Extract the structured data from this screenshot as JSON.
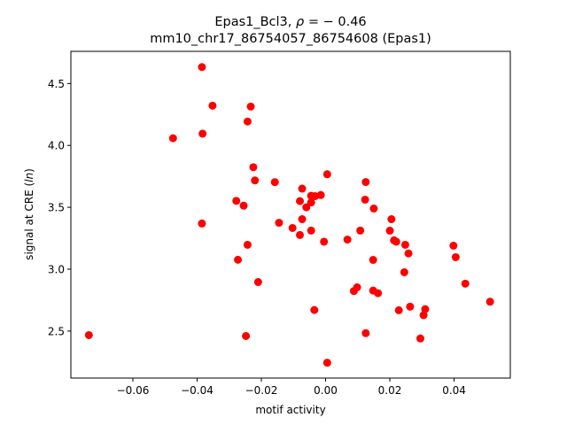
{
  "chart_data": {
    "type": "scatter",
    "title_line1_text": "Epas1_Bcl3, ",
    "title_line1_rho": "ρ",
    "title_line1_value": " = − 0.46",
    "title_line2": "mm10_chr17_86754057_86754608 (Epas1)",
    "xlabel": "motif activity",
    "ylabel_prefix": "signal at CRE (",
    "ylabel_italic": "ln",
    "ylabel_suffix": ")",
    "xlim": [
      -0.0793,
      0.0575
    ],
    "ylim": [
      2.12,
      4.76
    ],
    "x_ticks": [
      -0.06,
      -0.04,
      -0.02,
      0.0,
      0.02,
      0.04
    ],
    "x_tick_labels": [
      "−0.06",
      "−0.04",
      "−0.02",
      "0.00",
      "0.02",
      "0.04"
    ],
    "y_ticks": [
      2.5,
      3.0,
      3.5,
      4.0,
      4.5
    ],
    "y_tick_labels": [
      "2.5",
      "3.0",
      "3.5",
      "4.0",
      "4.5"
    ],
    "marker_color": "#ff0000",
    "grid": false,
    "points": [
      {
        "x": -0.0737,
        "y": 2.467
      },
      {
        "x": -0.0475,
        "y": 4.058
      },
      {
        "x": -0.0385,
        "y": 4.633
      },
      {
        "x": -0.0383,
        "y": 4.095
      },
      {
        "x": -0.0385,
        "y": 3.369
      },
      {
        "x": -0.0352,
        "y": 4.321
      },
      {
        "x": -0.0233,
        "y": 4.314
      },
      {
        "x": -0.0243,
        "y": 4.193
      },
      {
        "x": -0.0225,
        "y": 3.824
      },
      {
        "x": -0.022,
        "y": 3.717
      },
      {
        "x": -0.0278,
        "y": 3.552
      },
      {
        "x": -0.0255,
        "y": 3.513
      },
      {
        "x": -0.0243,
        "y": 3.197
      },
      {
        "x": -0.0273,
        "y": 3.076
      },
      {
        "x": -0.021,
        "y": 2.896
      },
      {
        "x": -0.0248,
        "y": 2.46
      },
      {
        "x": -0.0158,
        "y": 3.703
      },
      {
        "x": -0.0145,
        "y": 3.375
      },
      {
        "x": -0.0103,
        "y": 3.333
      },
      {
        "x": -0.008,
        "y": 3.55
      },
      {
        "x": -0.0073,
        "y": 3.651
      },
      {
        "x": -0.0073,
        "y": 3.404
      },
      {
        "x": -0.008,
        "y": 3.276
      },
      {
        "x": -0.006,
        "y": 3.5
      },
      {
        "x": -0.0045,
        "y": 3.539
      },
      {
        "x": -0.0045,
        "y": 3.593
      },
      {
        "x": -0.0033,
        "y": 3.59
      },
      {
        "x": -0.0015,
        "y": 3.599
      },
      {
        "x": -0.0045,
        "y": 3.312
      },
      {
        "x": -0.0035,
        "y": 2.67
      },
      {
        "x": -0.0005,
        "y": 3.222
      },
      {
        "x": 0.0005,
        "y": 3.767
      },
      {
        "x": 0.0005,
        "y": 2.244
      },
      {
        "x": 0.0068,
        "y": 3.239
      },
      {
        "x": 0.0108,
        "y": 3.312
      },
      {
        "x": 0.0125,
        "y": 3.704
      },
      {
        "x": 0.0123,
        "y": 3.562
      },
      {
        "x": 0.015,
        "y": 3.49
      },
      {
        "x": 0.0148,
        "y": 3.075
      },
      {
        "x": 0.0098,
        "y": 2.853
      },
      {
        "x": 0.0088,
        "y": 2.823
      },
      {
        "x": 0.0148,
        "y": 2.827
      },
      {
        "x": 0.0163,
        "y": 2.806
      },
      {
        "x": 0.0125,
        "y": 2.483
      },
      {
        "x": 0.0205,
        "y": 3.404
      },
      {
        "x": 0.02,
        "y": 3.311
      },
      {
        "x": 0.0213,
        "y": 3.233
      },
      {
        "x": 0.022,
        "y": 3.222
      },
      {
        "x": 0.0248,
        "y": 3.197
      },
      {
        "x": 0.0258,
        "y": 3.127
      },
      {
        "x": 0.0245,
        "y": 2.975
      },
      {
        "x": 0.0228,
        "y": 2.668
      },
      {
        "x": 0.0263,
        "y": 2.697
      },
      {
        "x": 0.0305,
        "y": 2.628
      },
      {
        "x": 0.031,
        "y": 2.677
      },
      {
        "x": 0.0295,
        "y": 2.44
      },
      {
        "x": 0.0398,
        "y": 3.19
      },
      {
        "x": 0.0405,
        "y": 3.097
      },
      {
        "x": 0.0435,
        "y": 2.883
      },
      {
        "x": 0.0512,
        "y": 2.737
      }
    ]
  }
}
